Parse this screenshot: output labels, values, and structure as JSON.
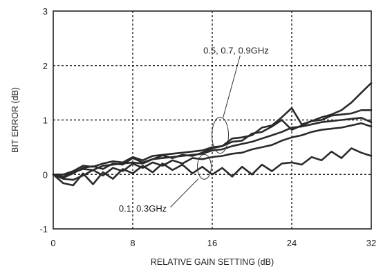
{
  "chart_data": {
    "type": "line",
    "title": "",
    "xlabel": "RELATIVE GAIN SETTING (dB)",
    "ylabel": "BIT ERROR (dB)",
    "xlim": [
      0,
      32
    ],
    "ylim": [
      -1,
      3
    ],
    "xticks": [
      0,
      8,
      16,
      24,
      32
    ],
    "yticks": [
      -1,
      0,
      1,
      2,
      3
    ],
    "xtick_labels": [
      "0",
      "8",
      "16",
      "24",
      "32"
    ],
    "ytick_labels": [
      "-1",
      "0",
      "1",
      "2",
      "3"
    ],
    "grid": true,
    "annotations": [
      {
        "text": "0.5, 0.7, 0.9GHz"
      },
      {
        "text": "0.1, 0.3GHz"
      }
    ],
    "series": [
      {
        "x": [
          0,
          1,
          2,
          3,
          4,
          5,
          6,
          7,
          8,
          9,
          10,
          11,
          12,
          13,
          14,
          15,
          16,
          17,
          18,
          19,
          20,
          21,
          22,
          23,
          24,
          25,
          26,
          27,
          28,
          29,
          30,
          31,
          32
        ],
        "values": [
          0,
          -0.06,
          0.02,
          0.12,
          0.15,
          0.1,
          0.2,
          0.18,
          0.3,
          0.22,
          0.28,
          0.35,
          0.3,
          0.36,
          0.34,
          0.4,
          0.48,
          0.52,
          0.6,
          0.62,
          0.75,
          0.78,
          0.88,
          1.0,
          0.82,
          0.9,
          0.98,
          1.05,
          1.1,
          1.18,
          1.32,
          1.5,
          1.68
        ]
      },
      {
        "x": [
          0,
          1,
          2,
          3,
          4,
          5,
          6,
          7,
          8,
          9,
          10,
          11,
          12,
          13,
          14,
          15,
          16,
          17,
          18,
          19,
          20,
          21,
          22,
          23,
          24,
          25,
          26,
          27,
          28,
          29,
          30,
          31,
          32
        ],
        "values": [
          0,
          0.0,
          0.06,
          0.16,
          0.14,
          0.2,
          0.24,
          0.22,
          0.32,
          0.26,
          0.34,
          0.36,
          0.38,
          0.4,
          0.42,
          0.44,
          0.5,
          0.52,
          0.66,
          0.68,
          0.72,
          0.86,
          0.9,
          1.05,
          1.22,
          0.92,
          0.98,
          1.0,
          1.08,
          1.1,
          1.12,
          1.18,
          1.18
        ]
      },
      {
        "x": [
          0,
          1,
          2,
          3,
          4,
          5,
          6,
          7,
          8,
          9,
          10,
          11,
          12,
          13,
          14,
          15,
          16,
          17,
          18,
          19,
          20,
          21,
          22,
          23,
          24,
          25,
          26,
          27,
          28,
          29,
          30,
          31,
          32
        ],
        "values": [
          0,
          -0.04,
          0.04,
          0.1,
          0.08,
          0.16,
          0.18,
          0.2,
          0.22,
          0.2,
          0.28,
          0.3,
          0.32,
          0.34,
          0.36,
          0.38,
          0.44,
          0.46,
          0.52,
          0.56,
          0.6,
          0.66,
          0.72,
          0.78,
          0.86,
          0.88,
          0.92,
          0.96,
          0.98,
          1.0,
          1.02,
          1.04,
          0.96
        ]
      },
      {
        "x": [
          0,
          1,
          2,
          3,
          4,
          5,
          6,
          7,
          8,
          9,
          10,
          11,
          12,
          13,
          14,
          15,
          16,
          17,
          18,
          19,
          20,
          21,
          22,
          23,
          24,
          25,
          26,
          27,
          28,
          29,
          30,
          31,
          32
        ],
        "values": [
          0,
          -0.08,
          -0.1,
          -0.02,
          0.08,
          -0.02,
          0.12,
          0.06,
          0.2,
          0.12,
          0.22,
          0.16,
          0.26,
          0.2,
          0.3,
          0.28,
          0.32,
          0.34,
          0.38,
          0.4,
          0.46,
          0.5,
          0.54,
          0.62,
          0.68,
          0.72,
          0.78,
          0.82,
          0.84,
          0.86,
          0.9,
          0.94,
          0.88
        ]
      },
      {
        "x": [
          0,
          1,
          2,
          3,
          4,
          5,
          6,
          7,
          8,
          9,
          10,
          11,
          12,
          13,
          14,
          15,
          16,
          17,
          18,
          19,
          20,
          21,
          22,
          23,
          24,
          25,
          26,
          27,
          28,
          29,
          30,
          31,
          32
        ],
        "values": [
          0,
          -0.16,
          -0.2,
          0.02,
          -0.18,
          0.04,
          -0.08,
          0.1,
          0.02,
          0.16,
          0.04,
          0.2,
          0.08,
          0.18,
          0.02,
          0.14,
          0.0,
          0.12,
          -0.04,
          0.14,
          0.0,
          0.18,
          0.06,
          0.2,
          0.22,
          0.18,
          0.32,
          0.26,
          0.42,
          0.3,
          0.48,
          0.4,
          0.34
        ]
      }
    ]
  }
}
